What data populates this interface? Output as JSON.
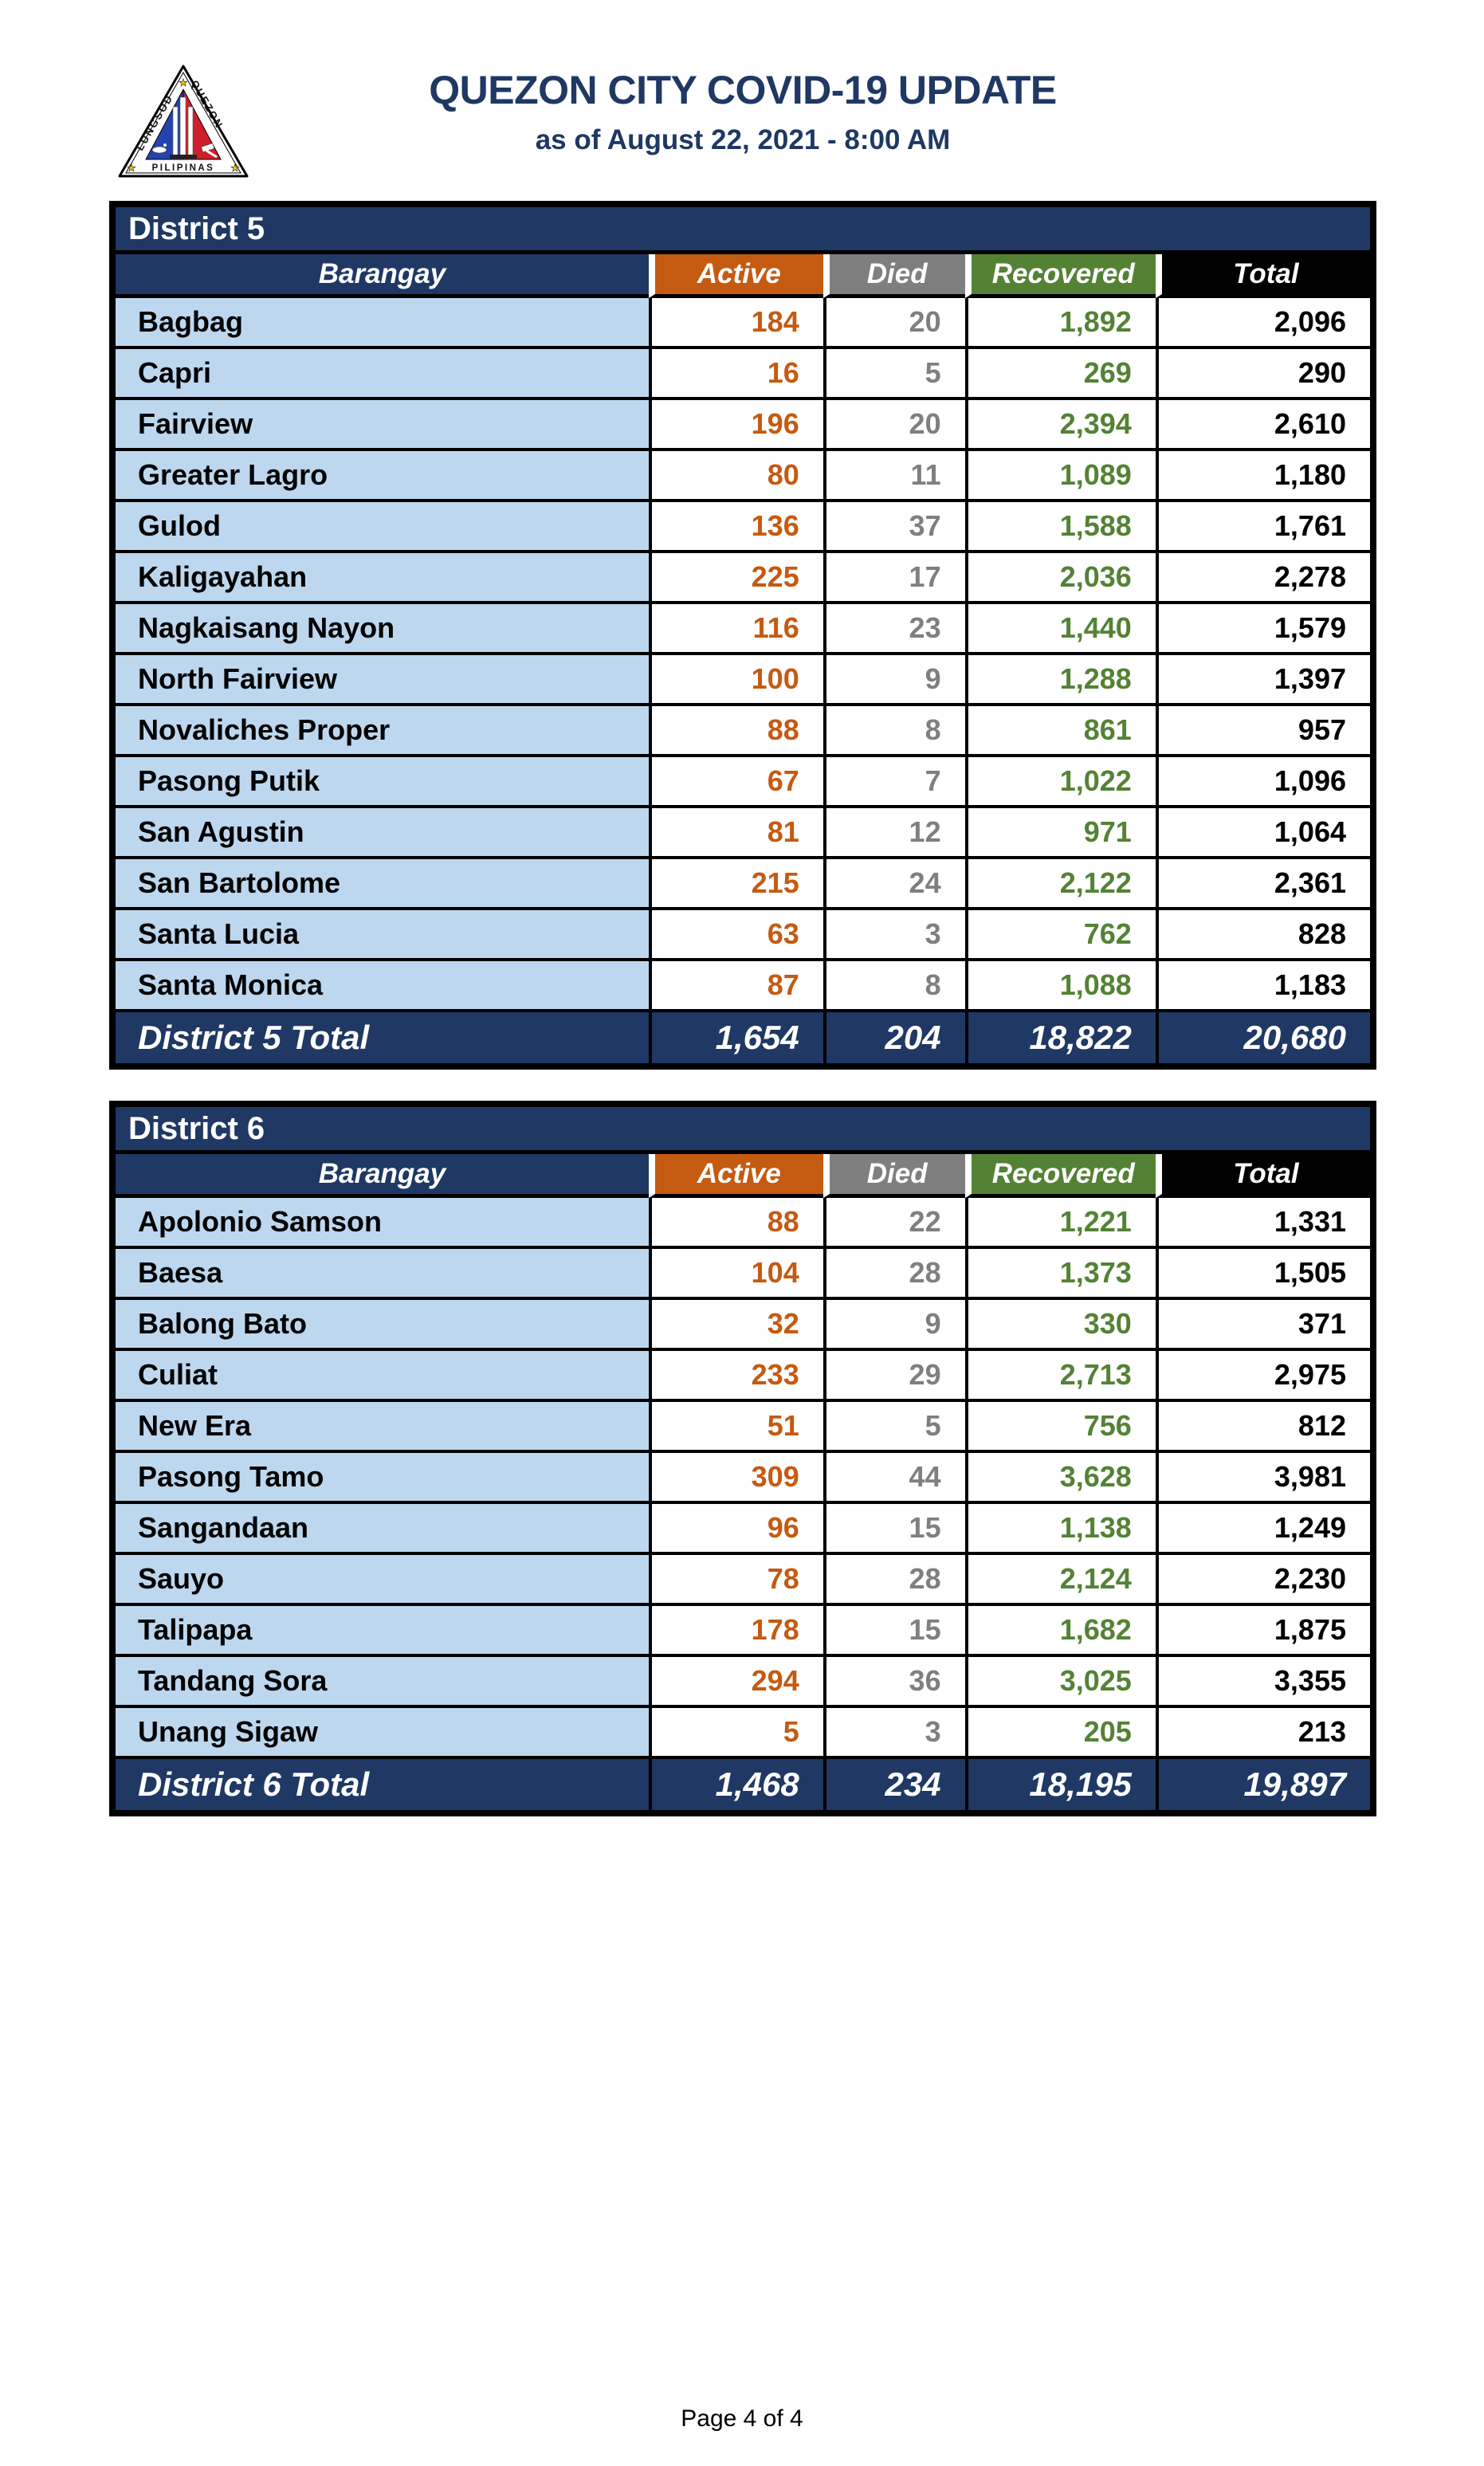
{
  "header": {
    "title": "QUEZON CITY COVID-19 UPDATE",
    "subtitle": "as of August 22, 2021 - 8:00 AM",
    "logo": {
      "icon": "quezon-city-seal",
      "text_left": "LUNGSOD",
      "text_right": "QUEZON",
      "text_bottom": "PILIPINAS"
    }
  },
  "columns": [
    "Barangay",
    "Active",
    "Died",
    "Recovered",
    "Total"
  ],
  "colors": {
    "navy": "#1F3864",
    "active_orange": "#C55A11",
    "died_gray": "#7F7F7F",
    "recovered_green": "#548235",
    "total_black": "#000000",
    "row_light_blue": "#BDD7EE",
    "title_navy": "#1F3864"
  },
  "tables": [
    {
      "district": "District 5",
      "rows": [
        [
          "Bagbag",
          "184",
          "20",
          "1,892",
          "2,096"
        ],
        [
          "Capri",
          "16",
          "5",
          "269",
          "290"
        ],
        [
          "Fairview",
          "196",
          "20",
          "2,394",
          "2,610"
        ],
        [
          "Greater Lagro",
          "80",
          "11",
          "1,089",
          "1,180"
        ],
        [
          "Gulod",
          "136",
          "37",
          "1,588",
          "1,761"
        ],
        [
          "Kaligayahan",
          "225",
          "17",
          "2,036",
          "2,278"
        ],
        [
          "Nagkaisang Nayon",
          "116",
          "23",
          "1,440",
          "1,579"
        ],
        [
          "North Fairview",
          "100",
          "9",
          "1,288",
          "1,397"
        ],
        [
          "Novaliches Proper",
          "88",
          "8",
          "861",
          "957"
        ],
        [
          "Pasong Putik",
          "67",
          "7",
          "1,022",
          "1,096"
        ],
        [
          "San Agustin",
          "81",
          "12",
          "971",
          "1,064"
        ],
        [
          "San Bartolome",
          "215",
          "24",
          "2,122",
          "2,361"
        ],
        [
          "Santa Lucia",
          "63",
          "3",
          "762",
          "828"
        ],
        [
          "Santa Monica",
          "87",
          "8",
          "1,088",
          "1,183"
        ]
      ],
      "total": [
        "District 5 Total",
        "1,654",
        "204",
        "18,822",
        "20,680"
      ]
    },
    {
      "district": "District 6",
      "rows": [
        [
          "Apolonio Samson",
          "88",
          "22",
          "1,221",
          "1,331"
        ],
        [
          "Baesa",
          "104",
          "28",
          "1,373",
          "1,505"
        ],
        [
          "Balong Bato",
          "32",
          "9",
          "330",
          "371"
        ],
        [
          "Culiat",
          "233",
          "29",
          "2,713",
          "2,975"
        ],
        [
          "New Era",
          "51",
          "5",
          "756",
          "812"
        ],
        [
          "Pasong Tamo",
          "309",
          "44",
          "3,628",
          "3,981"
        ],
        [
          "Sangandaan",
          "96",
          "15",
          "1,138",
          "1,249"
        ],
        [
          "Sauyo",
          "78",
          "28",
          "2,124",
          "2,230"
        ],
        [
          "Talipapa",
          "178",
          "15",
          "1,682",
          "1,875"
        ],
        [
          "Tandang Sora",
          "294",
          "36",
          "3,025",
          "3,355"
        ],
        [
          "Unang Sigaw",
          "5",
          "3",
          "205",
          "213"
        ]
      ],
      "total": [
        "District 6 Total",
        "1,468",
        "234",
        "18,195",
        "19,897"
      ]
    }
  ],
  "footer": {
    "page_label": "Page 4 of 4"
  }
}
